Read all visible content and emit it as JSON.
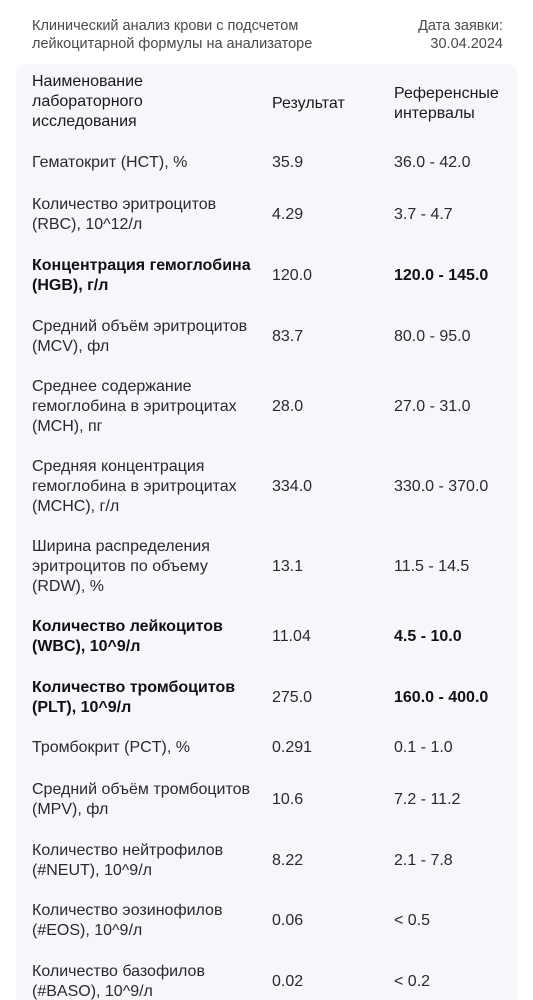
{
  "header": {
    "title": "Клинический анализ крови с подсчетом лейкоцитарной формулы на анализаторе",
    "date_label": "Дата заявки:",
    "date_value": "30.04.2024"
  },
  "table": {
    "col_name": "Наименование лабораторного исследования",
    "col_result": "Результат",
    "col_ref": "Референсные интервалы",
    "rows": [
      {
        "name": "Гематокрит (HCT), %",
        "result": "35.9",
        "ref": "36.0 - 42.0",
        "bold": false
      },
      {
        "name": "Количество эритроцитов (RBC), 10^12/л",
        "result": "4.29",
        "ref": "3.7 - 4.7",
        "bold": false
      },
      {
        "name": "Концентрация гемоглобина (HGB), г/л",
        "result": "120.0",
        "ref": "120.0 - 145.0",
        "bold": true
      },
      {
        "name": "Средний объём эритроцитов (MCV), фл",
        "result": "83.7",
        "ref": "80.0 - 95.0",
        "bold": false
      },
      {
        "name": "Среднее содержание гемоглобина в эритроцитах (MCH), пг",
        "result": "28.0",
        "ref": "27.0 - 31.0",
        "bold": false
      },
      {
        "name": "Средняя концентрация гемоглобина в эритроцитах (MCHC), г/л",
        "result": "334.0",
        "ref": "330.0 - 370.0",
        "bold": false
      },
      {
        "name": "Ширина распределения эритроцитов по объему (RDW), %",
        "result": "13.1",
        "ref": "11.5 - 14.5",
        "bold": false
      },
      {
        "name": "Количество лейкоцитов (WBC), 10^9/л",
        "result": "11.04",
        "ref": "4.5 - 10.0",
        "bold": true
      },
      {
        "name": "Количество тромбоцитов (PLT), 10^9/л",
        "result": "275.0",
        "ref": "160.0 - 400.0",
        "bold": true
      },
      {
        "name": "Тромбокрит (PCT), %",
        "result": "0.291",
        "ref": "0.1 - 1.0",
        "bold": false
      },
      {
        "name": "Средний объём тромбоцитов (MPV), фл",
        "result": "10.6",
        "ref": "7.2 - 11.2",
        "bold": false
      },
      {
        "name": "Количество нейтрофилов (#NEUT), 10^9/л",
        "result": "8.22",
        "ref": "2.1 - 7.8",
        "bold": false
      },
      {
        "name": "Количество эозинофилов (#EOS), 10^9/л",
        "result": "0.06",
        "ref": "< 0.5",
        "bold": false
      },
      {
        "name": "Количество базофилов (#BASO), 10^9/л",
        "result": "0.02",
        "ref": "< 0.2",
        "bold": false
      }
    ]
  }
}
